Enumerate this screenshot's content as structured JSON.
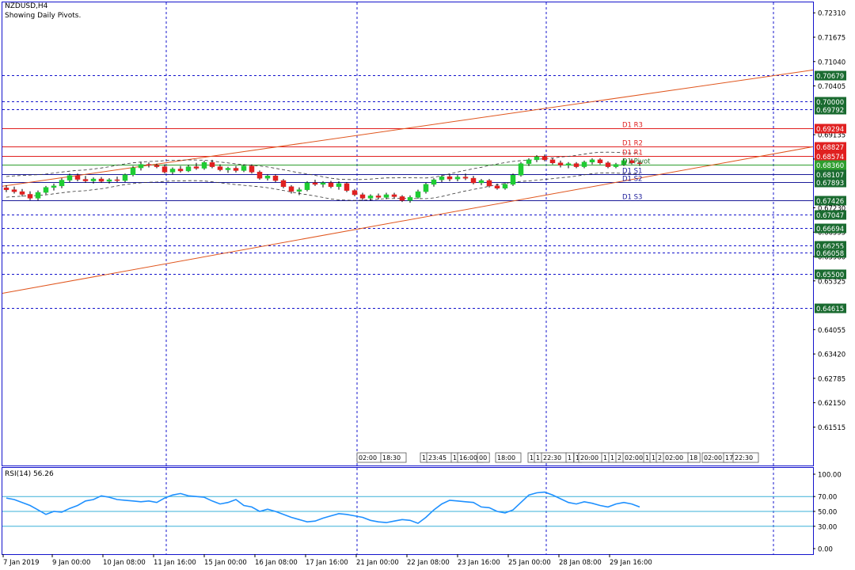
{
  "header": {
    "symbol": "NZDUSD,H4",
    "subtitle": "Showing Daily Pivots."
  },
  "chart_data": {
    "type": "candlestick",
    "title": "NZDUSD,H4",
    "subtitle": "Showing Daily Pivots.",
    "price_axis": {
      "range": [
        0.6105,
        0.725
      ],
      "tick_labels": [
        "0.72310",
        "0.71675",
        "0.71040",
        "0.70405",
        "0.69135",
        "0.68500",
        "0.67230",
        "0.66595",
        "0.65960",
        "0.65325",
        "0.64055",
        "0.63420",
        "0.62785",
        "0.62150",
        "0.61515"
      ]
    },
    "price_levels": [
      {
        "value": 0.70679,
        "label": "0.70679",
        "color": "#1a6b30",
        "style": "dashed-blue"
      },
      {
        "value": 0.7,
        "label": "0.70000",
        "color": "#1a6b30",
        "style": "dashed-blue"
      },
      {
        "value": 0.69792,
        "label": "0.69792",
        "color": "#1a6b30",
        "style": "dashed-blue"
      },
      {
        "value": 0.69294,
        "label": "0.69294",
        "color": "#e02020",
        "style": "solid-red",
        "pivot": "D1 R3"
      },
      {
        "value": 0.68827,
        "label": "0.68827",
        "color": "#e02020",
        "style": "solid-red",
        "pivot": "D1 R2"
      },
      {
        "value": 0.68574,
        "label": "0.68574",
        "color": "#e02020",
        "style": "solid-red",
        "pivot": "D1 R1"
      },
      {
        "value": 0.6836,
        "label": "0.68360",
        "color": "#2e9e2e",
        "style": "solid-green",
        "pivot": "D1 Pivot"
      },
      {
        "value": 0.68107,
        "label": "0.68107",
        "color": "#1a6b30",
        "style": "solid-navy",
        "pivot": "D1 S1"
      },
      {
        "value": 0.67893,
        "label": "0.67893",
        "color": "#1a6b30",
        "style": "solid-navy",
        "pivot": "D1 S2"
      },
      {
        "value": 0.67426,
        "label": "0.67426",
        "color": "#1a6b30",
        "style": "solid-navy",
        "pivot": "D1 S3"
      },
      {
        "value": 0.67047,
        "label": "0.67047",
        "color": "#1a6b30",
        "style": "dashed-blue"
      },
      {
        "value": 0.66694,
        "label": "0.66694",
        "color": "#1a6b30",
        "style": "dashed-blue"
      },
      {
        "value": 0.66255,
        "label": "0.66255",
        "color": "#1a6b30",
        "style": "dashed-blue"
      },
      {
        "value": 0.66058,
        "label": "0.66058",
        "color": "#1a6b30",
        "style": "dashed-blue"
      },
      {
        "value": 0.655,
        "label": "0.65500",
        "color": "#1a6b30",
        "style": "dashed-blue"
      },
      {
        "value": 0.64615,
        "label": "0.64615",
        "color": "#1a6b30",
        "style": "dashed-blue"
      }
    ],
    "channel": [
      {
        "start": 0.6779,
        "end": 0.7082
      },
      {
        "start": 0.65,
        "end": 0.6882
      }
    ],
    "time_labels": [
      "7 Jan 2019",
      "9 Jan 00:00",
      "10 Jan 08:00",
      "11 Jan 16:00",
      "15 Jan 00:00",
      "16 Jan 08:00",
      "17 Jan 16:00",
      "21 Jan 00:00",
      "22 Jan 08:00",
      "23 Jan 16:00",
      "25 Jan 00:00",
      "28 Jan 08:00",
      "29 Jan 16:00"
    ],
    "session_tags": [
      "02:00",
      "18:30",
      "1",
      "23:45",
      "1",
      "16:00",
      "00",
      "18:00",
      "1",
      "1",
      "22:30",
      "1",
      "1",
      "20:00",
      "1",
      "1",
      "2",
      "02:00",
      "1",
      "1",
      "2",
      "02:00",
      "18",
      "02:00",
      "17",
      "22:30"
    ],
    "candles": [
      {
        "o": 0.6775,
        "h": 0.6782,
        "l": 0.6764,
        "c": 0.677
      },
      {
        "o": 0.677,
        "h": 0.6778,
        "l": 0.676,
        "c": 0.6765
      },
      {
        "o": 0.6765,
        "h": 0.6772,
        "l": 0.6752,
        "c": 0.6758
      },
      {
        "o": 0.6758,
        "h": 0.6766,
        "l": 0.6743,
        "c": 0.6748
      },
      {
        "o": 0.6748,
        "h": 0.6768,
        "l": 0.6742,
        "c": 0.6763
      },
      {
        "o": 0.6763,
        "h": 0.678,
        "l": 0.6758,
        "c": 0.6776
      },
      {
        "o": 0.6776,
        "h": 0.6786,
        "l": 0.6768,
        "c": 0.678
      },
      {
        "o": 0.678,
        "h": 0.68,
        "l": 0.6774,
        "c": 0.6795
      },
      {
        "o": 0.6795,
        "h": 0.6812,
        "l": 0.679,
        "c": 0.6807
      },
      {
        "o": 0.6807,
        "h": 0.6812,
        "l": 0.6792,
        "c": 0.6797
      },
      {
        "o": 0.6797,
        "h": 0.6806,
        "l": 0.6788,
        "c": 0.6793
      },
      {
        "o": 0.6793,
        "h": 0.6802,
        "l": 0.6786,
        "c": 0.6798
      },
      {
        "o": 0.6798,
        "h": 0.6803,
        "l": 0.6788,
        "c": 0.6792
      },
      {
        "o": 0.6792,
        "h": 0.68,
        "l": 0.6786,
        "c": 0.6796
      },
      {
        "o": 0.6796,
        "h": 0.6804,
        "l": 0.679,
        "c": 0.6794
      },
      {
        "o": 0.6794,
        "h": 0.6812,
        "l": 0.679,
        "c": 0.6809
      },
      {
        "o": 0.6809,
        "h": 0.6832,
        "l": 0.6805,
        "c": 0.6827
      },
      {
        "o": 0.6827,
        "h": 0.6842,
        "l": 0.682,
        "c": 0.6836
      },
      {
        "o": 0.6836,
        "h": 0.6841,
        "l": 0.6828,
        "c": 0.6834
      },
      {
        "o": 0.6834,
        "h": 0.6838,
        "l": 0.6826,
        "c": 0.683
      },
      {
        "o": 0.683,
        "h": 0.6836,
        "l": 0.6812,
        "c": 0.6816
      },
      {
        "o": 0.6816,
        "h": 0.6828,
        "l": 0.681,
        "c": 0.6824
      },
      {
        "o": 0.6824,
        "h": 0.6832,
        "l": 0.6815,
        "c": 0.6819
      },
      {
        "o": 0.6819,
        "h": 0.6835,
        "l": 0.6816,
        "c": 0.683
      },
      {
        "o": 0.683,
        "h": 0.684,
        "l": 0.6822,
        "c": 0.6826
      },
      {
        "o": 0.6826,
        "h": 0.6845,
        "l": 0.6822,
        "c": 0.6841
      },
      {
        "o": 0.6841,
        "h": 0.6848,
        "l": 0.6826,
        "c": 0.683
      },
      {
        "o": 0.683,
        "h": 0.6836,
        "l": 0.6818,
        "c": 0.6822
      },
      {
        "o": 0.6822,
        "h": 0.683,
        "l": 0.6814,
        "c": 0.6826
      },
      {
        "o": 0.6826,
        "h": 0.6832,
        "l": 0.6815,
        "c": 0.682
      },
      {
        "o": 0.682,
        "h": 0.6836,
        "l": 0.6816,
        "c": 0.6832
      },
      {
        "o": 0.6832,
        "h": 0.6836,
        "l": 0.6812,
        "c": 0.6816
      },
      {
        "o": 0.6816,
        "h": 0.682,
        "l": 0.6796,
        "c": 0.68
      },
      {
        "o": 0.68,
        "h": 0.681,
        "l": 0.6794,
        "c": 0.6806
      },
      {
        "o": 0.6806,
        "h": 0.681,
        "l": 0.679,
        "c": 0.6794
      },
      {
        "o": 0.6794,
        "h": 0.6798,
        "l": 0.6774,
        "c": 0.6778
      },
      {
        "o": 0.6778,
        "h": 0.6782,
        "l": 0.676,
        "c": 0.6766
      },
      {
        "o": 0.6766,
        "h": 0.6776,
        "l": 0.6756,
        "c": 0.677
      },
      {
        "o": 0.677,
        "h": 0.6792,
        "l": 0.6766,
        "c": 0.6788
      },
      {
        "o": 0.6788,
        "h": 0.6796,
        "l": 0.678,
        "c": 0.6784
      },
      {
        "o": 0.6784,
        "h": 0.6792,
        "l": 0.6776,
        "c": 0.6788
      },
      {
        "o": 0.6788,
        "h": 0.6793,
        "l": 0.6774,
        "c": 0.6778
      },
      {
        "o": 0.6778,
        "h": 0.6792,
        "l": 0.677,
        "c": 0.6786
      },
      {
        "o": 0.6786,
        "h": 0.679,
        "l": 0.6764,
        "c": 0.6768
      },
      {
        "o": 0.6768,
        "h": 0.6772,
        "l": 0.6753,
        "c": 0.6757
      },
      {
        "o": 0.6757,
        "h": 0.6762,
        "l": 0.6743,
        "c": 0.6748
      },
      {
        "o": 0.6748,
        "h": 0.6758,
        "l": 0.6742,
        "c": 0.6754
      },
      {
        "o": 0.6754,
        "h": 0.676,
        "l": 0.6745,
        "c": 0.675
      },
      {
        "o": 0.675,
        "h": 0.6762,
        "l": 0.6745,
        "c": 0.6757
      },
      {
        "o": 0.6757,
        "h": 0.6762,
        "l": 0.6748,
        "c": 0.6752
      },
      {
        "o": 0.6752,
        "h": 0.6756,
        "l": 0.6738,
        "c": 0.6742
      },
      {
        "o": 0.6742,
        "h": 0.6755,
        "l": 0.6736,
        "c": 0.675
      },
      {
        "o": 0.675,
        "h": 0.677,
        "l": 0.6746,
        "c": 0.6765
      },
      {
        "o": 0.6765,
        "h": 0.6788,
        "l": 0.676,
        "c": 0.6784
      },
      {
        "o": 0.6784,
        "h": 0.68,
        "l": 0.6778,
        "c": 0.6796
      },
      {
        "o": 0.6796,
        "h": 0.6808,
        "l": 0.679,
        "c": 0.6804
      },
      {
        "o": 0.6804,
        "h": 0.681,
        "l": 0.6792,
        "c": 0.6798
      },
      {
        "o": 0.6798,
        "h": 0.6808,
        "l": 0.6792,
        "c": 0.6803
      },
      {
        "o": 0.6803,
        "h": 0.6812,
        "l": 0.6795,
        "c": 0.68
      },
      {
        "o": 0.68,
        "h": 0.6806,
        "l": 0.6784,
        "c": 0.6788
      },
      {
        "o": 0.6788,
        "h": 0.6798,
        "l": 0.6782,
        "c": 0.6794
      },
      {
        "o": 0.6794,
        "h": 0.6798,
        "l": 0.6776,
        "c": 0.678
      },
      {
        "o": 0.678,
        "h": 0.6786,
        "l": 0.677,
        "c": 0.6774
      },
      {
        "o": 0.6774,
        "h": 0.6788,
        "l": 0.677,
        "c": 0.6784
      },
      {
        "o": 0.6784,
        "h": 0.6812,
        "l": 0.678,
        "c": 0.6808
      },
      {
        "o": 0.6808,
        "h": 0.6842,
        "l": 0.6804,
        "c": 0.6838
      },
      {
        "o": 0.6838,
        "h": 0.6852,
        "l": 0.6832,
        "c": 0.6848
      },
      {
        "o": 0.6848,
        "h": 0.686,
        "l": 0.6842,
        "c": 0.6856
      },
      {
        "o": 0.6856,
        "h": 0.6862,
        "l": 0.6844,
        "c": 0.6848
      },
      {
        "o": 0.6848,
        "h": 0.6852,
        "l": 0.6836,
        "c": 0.684
      },
      {
        "o": 0.684,
        "h": 0.6846,
        "l": 0.6828,
        "c": 0.6834
      },
      {
        "o": 0.6834,
        "h": 0.6842,
        "l": 0.6826,
        "c": 0.6838
      },
      {
        "o": 0.6838,
        "h": 0.6842,
        "l": 0.6826,
        "c": 0.683
      },
      {
        "o": 0.683,
        "h": 0.6846,
        "l": 0.6826,
        "c": 0.6842
      },
      {
        "o": 0.6842,
        "h": 0.6852,
        "l": 0.6836,
        "c": 0.6848
      },
      {
        "o": 0.6848,
        "h": 0.6852,
        "l": 0.6836,
        "c": 0.684
      },
      {
        "o": 0.684,
        "h": 0.6844,
        "l": 0.6826,
        "c": 0.683
      },
      {
        "o": 0.683,
        "h": 0.684,
        "l": 0.6826,
        "c": 0.6836
      },
      {
        "o": 0.6836,
        "h": 0.685,
        "l": 0.6832,
        "c": 0.6846
      },
      {
        "o": 0.6846,
        "h": 0.6851,
        "l": 0.6836,
        "c": 0.684
      },
      {
        "o": 0.684,
        "h": 0.6845,
        "l": 0.6832,
        "c": 0.6838
      }
    ],
    "rsi": {
      "label": "RSI(14) 56.26",
      "period": 14,
      "current": 56.26,
      "levels": [
        70,
        50,
        30
      ],
      "range": [
        0,
        100
      ],
      "tick_labels": [
        "100.00",
        "70.00",
        "50.00",
        "30.00",
        "0.00"
      ],
      "values": [
        68,
        66,
        62,
        58,
        52,
        46,
        50,
        49,
        54,
        58,
        64,
        66,
        71,
        69,
        66,
        65,
        64,
        63,
        64,
        62,
        68,
        72,
        74,
        71,
        70,
        69,
        64,
        60,
        62,
        66,
        58,
        56,
        50,
        53,
        50,
        46,
        42,
        39,
        36,
        37,
        41,
        44,
        47,
        46,
        44,
        42,
        38,
        36,
        35,
        37,
        39,
        38,
        34,
        42,
        52,
        60,
        65,
        64,
        63,
        62,
        56,
        55,
        50,
        48,
        52,
        62,
        72,
        75,
        76,
        72,
        67,
        62,
        60,
        63,
        61,
        58,
        56,
        60,
        62,
        60,
        56
      ]
    },
    "colors": {
      "bull": "#1ecc33",
      "bear": "#e02020",
      "channel": "#e0561e",
      "grid": "#1414cc",
      "pivot_green": "#2e9e2e",
      "pivot_red": "#e02020",
      "pivot_navy": "#1a1a99",
      "rsi_line": "#1e90ff"
    }
  }
}
